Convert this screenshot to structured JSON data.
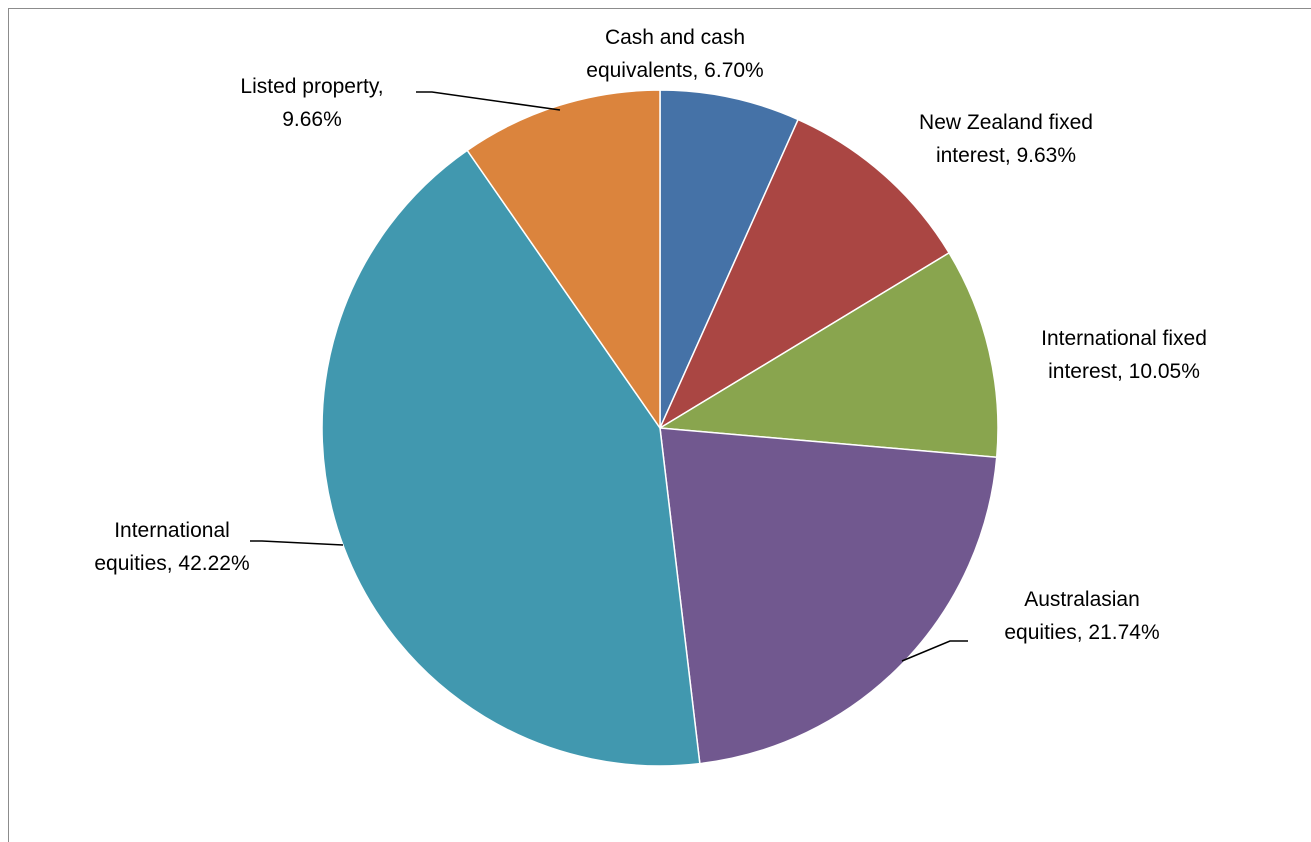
{
  "chart_data": {
    "type": "pie",
    "title": "",
    "slices": [
      {
        "label": "Cash and cash equivalents",
        "value": 6.7,
        "display": "6.70%",
        "color": "#4572a7",
        "label_lines": [
          "Cash and cash",
          "equivalents, 6.70%"
        ]
      },
      {
        "label": "New Zealand fixed interest",
        "value": 9.63,
        "display": "9.63%",
        "color": "#aa4643",
        "label_lines": [
          "New Zealand fixed",
          "interest, 9.63%"
        ]
      },
      {
        "label": "International fixed interest",
        "value": 10.05,
        "display": "10.05%",
        "color": "#89a54e",
        "label_lines": [
          "International fixed",
          "interest, 10.05%"
        ]
      },
      {
        "label": "Australasian equities",
        "value": 21.74,
        "display": "21.74%",
        "color": "#71588f",
        "label_lines": [
          "Australasian",
          "equities, 21.74%"
        ]
      },
      {
        "label": "International equities",
        "value": 42.22,
        "display": "42.22%",
        "color": "#4198af",
        "label_lines": [
          "International",
          "equities, 42.22%"
        ]
      },
      {
        "label": "Listed property",
        "value": 9.66,
        "display": "9.66%",
        "color": "#db843d",
        "label_lines": [
          "Listed property,",
          "9.66%"
        ]
      }
    ],
    "start_angle": "12 o'clock",
    "direction": "clockwise",
    "legend": "none",
    "data_labels": "outside with leader lines"
  }
}
